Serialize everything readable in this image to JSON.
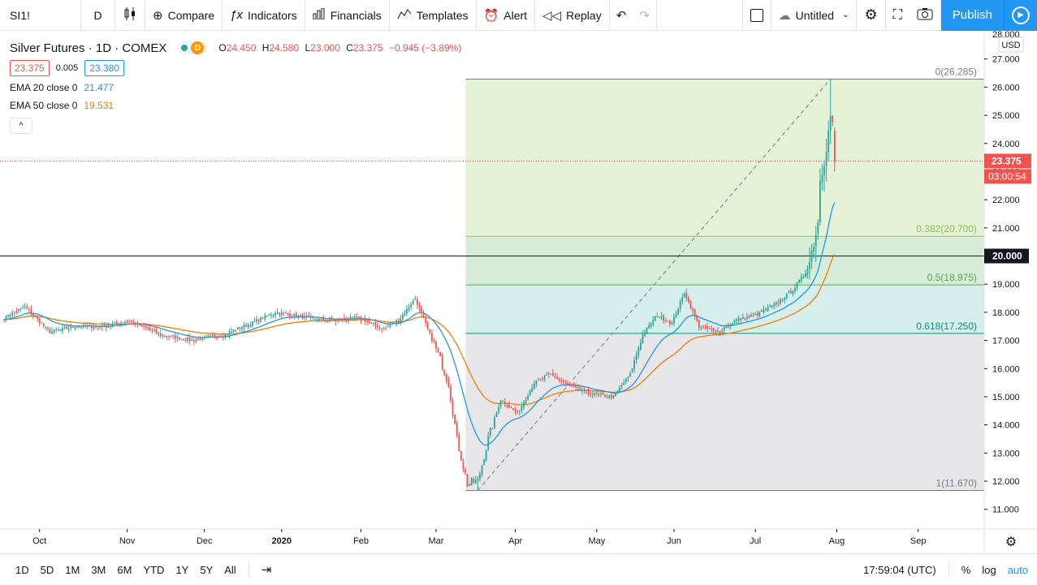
{
  "toolbar": {
    "symbol": "SI1!",
    "interval": "D",
    "compare": "Compare",
    "indicators": "Indicators",
    "financials": "Financials",
    "templates": "Templates",
    "alert": "Alert",
    "replay": "Replay",
    "layout_name": "Untitled",
    "publish": "Publish"
  },
  "legend": {
    "title": "Silver Futures · 1D · COMEX",
    "status_letter": "D",
    "open_label": "O",
    "open": "24.450",
    "high_label": "H",
    "high": "24.580",
    "low_label": "L",
    "low": "23.000",
    "close_label": "C",
    "close": "23.375",
    "change": "−0.945 (−3.89%)",
    "bid": "23.375",
    "spread": "0.005",
    "ask": "23.380",
    "ema20_label": "EMA 20 close 0",
    "ema20_value": "21.477",
    "ema50_label": "EMA 50 close 0",
    "ema50_value": "19.531",
    "collapse": "^"
  },
  "chart_data": {
    "type": "candlestick",
    "symbol": "SI1!",
    "timeframe": "1D",
    "y_axis": {
      "ticks": [
        "28.000",
        "27.000",
        "26.000",
        "25.000",
        "24.000",
        "23.000",
        "22.000",
        "21.000",
        "20.000",
        "19.000",
        "18.000",
        "17.000",
        "16.000",
        "15.000",
        "14.000",
        "13.000",
        "12.000",
        "11.000"
      ],
      "currency": "USD",
      "range": [
        10.3,
        28.0
      ]
    },
    "x_axis": {
      "ticks": [
        "Oct",
        "Nov",
        "Dec",
        "2020",
        "Feb",
        "Mar",
        "Apr",
        "May",
        "Jun",
        "Jul",
        "Aug",
        "Sep"
      ]
    },
    "last_price": {
      "value": 23.375,
      "label": "23.375",
      "countdown": "03:00:54"
    },
    "horizontal_line": {
      "value": 20.0,
      "label": "20.000"
    },
    "fibonacci": [
      {
        "level": "0",
        "value": 26.285,
        "label": "0(26.285)"
      },
      {
        "level": "0.382",
        "value": 20.7,
        "label": "0.382(20.700)"
      },
      {
        "level": "0.5",
        "value": 18.975,
        "label": "0.5(18.975)"
      },
      {
        "level": "0.618",
        "value": 17.25,
        "label": "0.618(17.250)"
      },
      {
        "level": "1",
        "value": 11.67,
        "label": "1(11.670)"
      }
    ],
    "price_series": {
      "name": "Silver Futures",
      "anchors": [
        [
          0,
          17.8
        ],
        [
          10,
          18.2
        ],
        [
          22,
          17.3
        ],
        [
          35,
          17.5
        ],
        [
          48,
          17.5
        ],
        [
          60,
          17.7
        ],
        [
          75,
          17.2
        ],
        [
          90,
          17.0
        ],
        [
          105,
          17.2
        ],
        [
          118,
          17.6
        ],
        [
          130,
          18.0
        ],
        [
          145,
          17.8
        ],
        [
          155,
          17.7
        ],
        [
          170,
          17.8
        ],
        [
          182,
          17.4
        ],
        [
          190,
          17.8
        ],
        [
          197,
          18.5
        ],
        [
          203,
          17.4
        ],
        [
          208,
          16.5
        ],
        [
          213,
          15.5
        ],
        [
          217,
          13.5
        ],
        [
          222,
          11.9
        ],
        [
          227,
          12.0
        ],
        [
          232,
          13.5
        ],
        [
          238,
          14.9
        ],
        [
          246,
          14.4
        ],
        [
          254,
          15.5
        ],
        [
          262,
          15.8
        ],
        [
          270,
          15.4
        ],
        [
          282,
          15.1
        ],
        [
          292,
          15.0
        ],
        [
          300,
          15.8
        ],
        [
          306,
          17.2
        ],
        [
          313,
          17.9
        ],
        [
          320,
          17.6
        ],
        [
          326,
          18.7
        ],
        [
          333,
          17.5
        ],
        [
          342,
          17.3
        ],
        [
          350,
          17.7
        ],
        [
          360,
          17.9
        ],
        [
          370,
          18.3
        ],
        [
          378,
          18.8
        ],
        [
          384,
          19.4
        ],
        [
          386,
          19.8
        ],
        [
          388,
          20.5
        ],
        [
          390,
          21.2
        ],
        [
          391,
          22.8
        ],
        [
          393,
          23.4
        ],
        [
          395,
          24.4
        ],
        [
          396,
          25.0
        ],
        [
          397,
          24.6
        ],
        [
          398,
          23.4
        ]
      ],
      "fib_low_bar": 227,
      "fib_high_bar": 396
    },
    "ema20": {
      "name": "EMA 20 close 0",
      "value": 21.477,
      "color": "#2196f3"
    },
    "ema50": {
      "name": "EMA 50 close 0",
      "value": 19.531,
      "color": "#f57c00"
    }
  },
  "bottom": {
    "ranges": [
      "1D",
      "5D",
      "1M",
      "3M",
      "6M",
      "YTD",
      "1Y",
      "5Y",
      "All"
    ],
    "time": "17:59:04 (UTC)",
    "percent": "%",
    "log": "log",
    "auto": "auto"
  },
  "colors": {
    "up": "#26a69a",
    "down": "#ef5350",
    "accent": "#2196f3"
  }
}
